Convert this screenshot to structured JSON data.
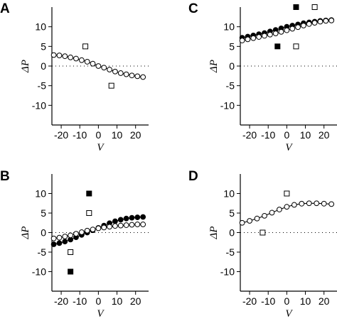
{
  "chart_data": [
    {
      "panel": "A",
      "type": "scatter",
      "xlabel": "V",
      "ylabel": "ΔP",
      "xlim": [
        -25,
        27
      ],
      "ylim": [
        -15,
        15
      ],
      "xticks": [
        -20,
        -10,
        0,
        10,
        20
      ],
      "yticks": [
        -10,
        -5,
        0,
        5,
        10
      ],
      "grid": false,
      "series": [
        {
          "marker": "open-circle-line",
          "x": [
            -24,
            -21,
            -18,
            -15,
            -12,
            -9,
            -6,
            -3,
            0,
            3,
            6,
            9,
            12,
            15,
            18,
            21,
            24
          ],
          "y": [
            2.8,
            2.7,
            2.5,
            2.2,
            1.9,
            1.5,
            1.1,
            0.6,
            0.0,
            -0.4,
            -0.9,
            -1.4,
            -1.8,
            -2.1,
            -2.4,
            -2.6,
            -2.8
          ]
        },
        {
          "marker": "open-square",
          "x": [
            -7,
            7
          ],
          "y": [
            5,
            -5
          ]
        }
      ]
    },
    {
      "panel": "B",
      "type": "scatter",
      "xlabel": "V",
      "ylabel": "ΔP",
      "xlim": [
        -25,
        27
      ],
      "ylim": [
        -15,
        15
      ],
      "xticks": [
        -20,
        -10,
        0,
        10,
        20
      ],
      "yticks": [
        -10,
        -5,
        0,
        5,
        10
      ],
      "grid": false,
      "series": [
        {
          "marker": "filled-circle-line",
          "x": [
            -24,
            -21,
            -18,
            -15,
            -12,
            -9,
            -6,
            -3,
            0,
            3,
            6,
            9,
            12,
            15,
            18,
            21,
            24
          ],
          "y": [
            -3.0,
            -2.7,
            -2.3,
            -1.8,
            -1.2,
            -0.6,
            0.0,
            0.6,
            1.2,
            1.8,
            2.4,
            2.9,
            3.3,
            3.6,
            3.8,
            3.9,
            4.0
          ]
        },
        {
          "marker": "open-circle-line",
          "x": [
            -24,
            -21,
            -18,
            -15,
            -12,
            -9,
            -6,
            -3,
            0,
            3,
            6,
            9,
            12,
            15,
            18,
            21,
            24
          ],
          "y": [
            -1.5,
            -1.3,
            -1.0,
            -0.7,
            -0.3,
            0.1,
            0.5,
            0.8,
            1.1,
            1.3,
            1.5,
            1.7,
            1.8,
            1.9,
            2.0,
            2.1,
            2.1
          ]
        },
        {
          "marker": "filled-square",
          "x": [
            -15,
            -5
          ],
          "y": [
            -10,
            10
          ]
        },
        {
          "marker": "open-square",
          "x": [
            -15,
            -5
          ],
          "y": [
            -5,
            5
          ]
        }
      ]
    },
    {
      "panel": "C",
      "type": "scatter",
      "xlabel": "V",
      "ylabel": "ΔP",
      "xlim": [
        -25,
        27
      ],
      "ylim": [
        -15,
        15
      ],
      "xticks": [
        -20,
        -10,
        0,
        10,
        20
      ],
      "yticks": [
        -10,
        -5,
        0,
        5,
        10
      ],
      "grid": false,
      "series": [
        {
          "marker": "filled-circle-line",
          "x": [
            -24,
            -21,
            -18,
            -15,
            -12,
            -9,
            -6,
            -3,
            0,
            3,
            6,
            9,
            12,
            15,
            18,
            21,
            24
          ],
          "y": [
            7.2,
            7.5,
            7.8,
            8.1,
            8.4,
            8.8,
            9.2,
            9.6,
            10.0,
            10.3,
            10.6,
            10.9,
            11.1,
            11.3,
            11.5,
            11.6,
            11.7
          ]
        },
        {
          "marker": "open-circle-line",
          "x": [
            -24,
            -21,
            -18,
            -15,
            -12,
            -9,
            -6,
            -3,
            0,
            3,
            6,
            9,
            12,
            15,
            18,
            21,
            24
          ],
          "y": [
            6.5,
            6.8,
            7.1,
            7.4,
            7.7,
            8.0,
            8.3,
            8.7,
            9.1,
            9.5,
            9.9,
            10.3,
            10.7,
            11.0,
            11.3,
            11.5,
            11.6
          ]
        },
        {
          "marker": "filled-square",
          "x": [
            -5,
            5
          ],
          "y": [
            5,
            15
          ]
        },
        {
          "marker": "open-square",
          "x": [
            5,
            15
          ],
          "y": [
            5,
            15
          ]
        }
      ]
    },
    {
      "panel": "D",
      "type": "scatter",
      "xlabel": "V",
      "ylabel": "ΔP",
      "xlim": [
        -25,
        27
      ],
      "ylim": [
        -15,
        15
      ],
      "xticks": [
        -20,
        -10,
        0,
        10,
        20
      ],
      "yticks": [
        -10,
        -5,
        0,
        5,
        10
      ],
      "grid": false,
      "series": [
        {
          "marker": "open-circle-line",
          "x": [
            -24,
            -20,
            -16,
            -12,
            -8,
            -4,
            0,
            4,
            8,
            12,
            16,
            20,
            24
          ],
          "y": [
            2.5,
            3.0,
            3.6,
            4.3,
            5.1,
            5.9,
            6.6,
            7.1,
            7.4,
            7.5,
            7.5,
            7.4,
            7.3
          ]
        },
        {
          "marker": "open-square",
          "x": [
            -13,
            0
          ],
          "y": [
            0,
            10
          ]
        }
      ]
    }
  ]
}
